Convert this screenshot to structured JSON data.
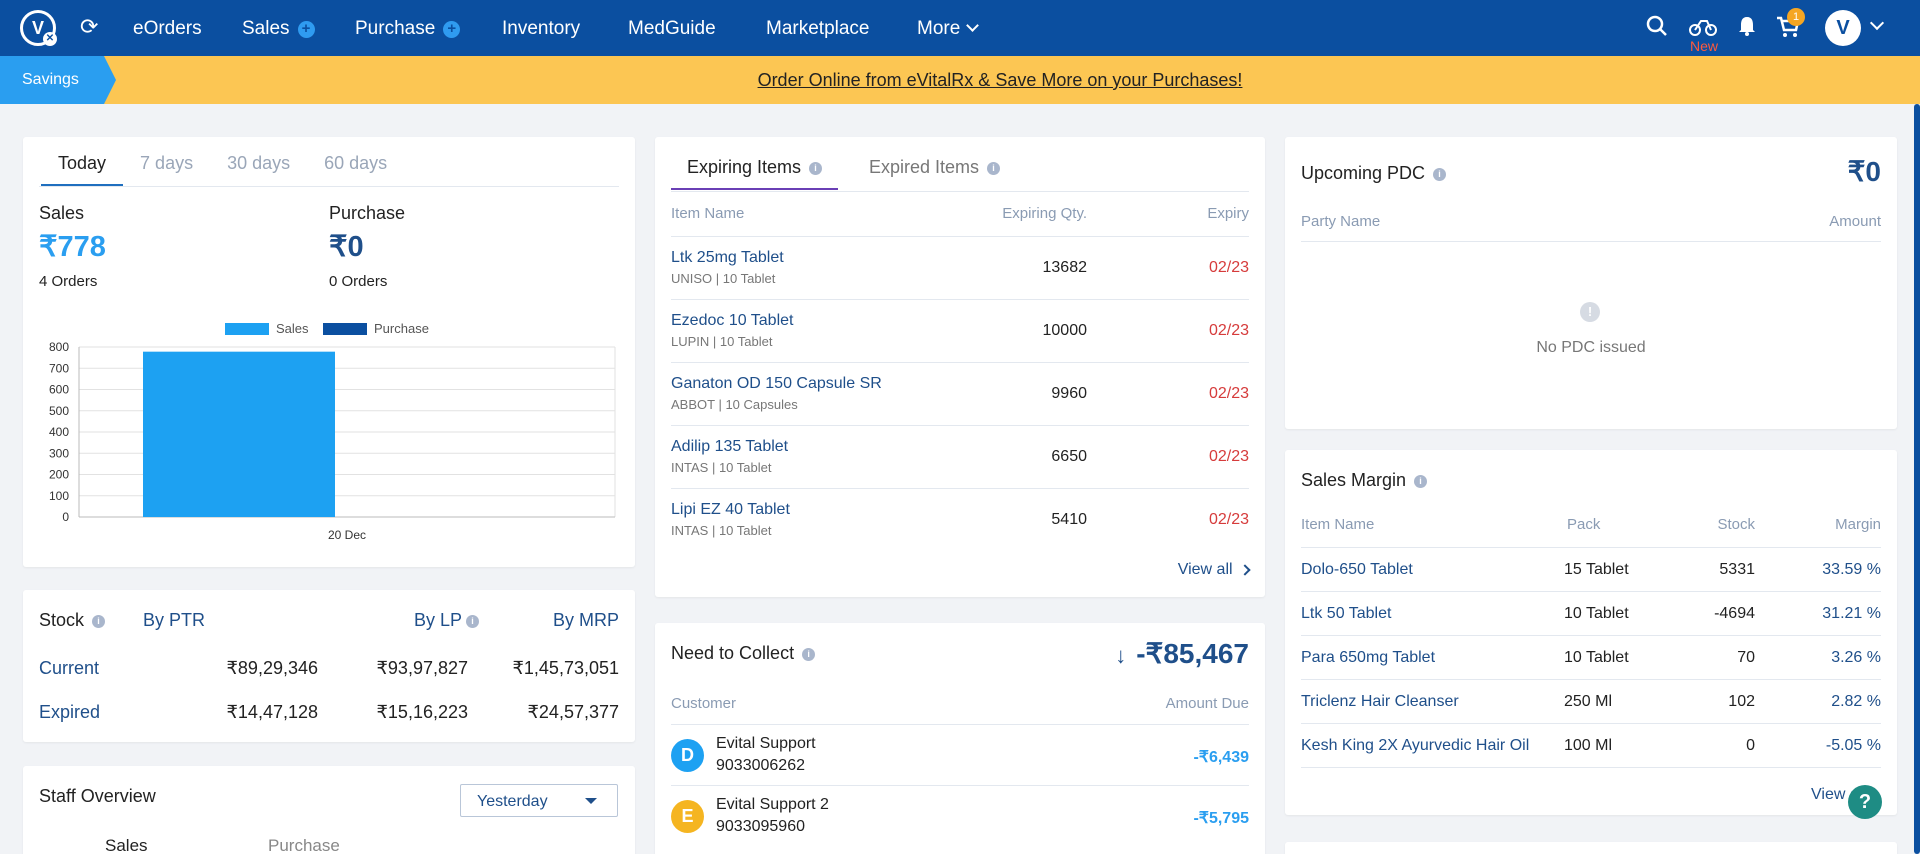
{
  "nav": {
    "items": [
      "eOrders",
      "Sales",
      "Purchase",
      "Inventory",
      "MedGuide",
      "Marketplace",
      "More"
    ],
    "new_label": "New",
    "cart_count": "1",
    "logo_letter": "V"
  },
  "banner": {
    "savings_label": "Savings",
    "link_text": "Order Online from eVitalRx & Save More on your Purchases!"
  },
  "overview": {
    "tabs": [
      "Today",
      "7 days",
      "30 days",
      "60 days"
    ],
    "active_tab": "Today",
    "sales": {
      "label": "Sales",
      "value": "₹778",
      "orders": "4 Orders"
    },
    "purchase": {
      "label": "Purchase",
      "value": "₹0",
      "orders": "0 Orders"
    }
  },
  "chart_data": {
    "type": "bar",
    "categories": [
      "20 Dec"
    ],
    "series": [
      {
        "name": "Sales",
        "values": [
          778
        ],
        "color": "#1da1f2"
      },
      {
        "name": "Purchase",
        "values": [
          0
        ],
        "color": "#0b4fa0"
      }
    ],
    "ylim": [
      0,
      800
    ],
    "yticks": [
      "0",
      "100",
      "200",
      "300",
      "400",
      "500",
      "600",
      "700",
      "800"
    ],
    "legend": "top-center",
    "grid": true
  },
  "stock": {
    "title": "Stock",
    "columns": [
      "By PTR",
      "By LP",
      "By MRP"
    ],
    "rows": [
      {
        "label": "Current",
        "values": [
          "₹89,29,346",
          "₹93,97,827",
          "₹1,45,73,051"
        ]
      },
      {
        "label": "Expired",
        "values": [
          "₹14,47,128",
          "₹15,16,223",
          "₹24,57,377"
        ]
      }
    ]
  },
  "staff": {
    "title": "Staff Overview",
    "select_value": "Yesterday",
    "sub_tabs": [
      "Sales",
      "Purchase"
    ]
  },
  "expiring": {
    "tabs": [
      "Expiring Items",
      "Expired Items"
    ],
    "headers": [
      "Item Name",
      "Expiring Qty.",
      "Expiry"
    ],
    "items": [
      {
        "name": "Ltk 25mg Tablet",
        "company": "UNISO",
        "pack": "10 Tablet",
        "qty": "13682",
        "expiry": "02/23"
      },
      {
        "name": "Ezedoc 10 Tablet",
        "company": "LUPIN",
        "pack": "10 Tablet",
        "qty": "10000",
        "expiry": "02/23"
      },
      {
        "name": "Ganaton OD 150 Capsule SR",
        "company": "ABBOT",
        "pack": "10 Capsules",
        "qty": "9960",
        "expiry": "02/23"
      },
      {
        "name": "Adilip 135 Tablet",
        "company": "INTAS",
        "pack": "10 Tablet",
        "qty": "6650",
        "expiry": "02/23"
      },
      {
        "name": "Lipi EZ 40 Tablet",
        "company": "INTAS",
        "pack": "10 Tablet",
        "qty": "5410",
        "expiry": "02/23"
      }
    ],
    "view_all": "View all"
  },
  "collect": {
    "title": "Need to Collect",
    "total": "-₹85,467",
    "headers": [
      "Customer",
      "Amount Due"
    ],
    "items": [
      {
        "initial": "D",
        "name": "Evital Support",
        "phone": "9033006262",
        "amount": "-₹6,439",
        "color": "#1da1f2"
      },
      {
        "initial": "E",
        "name": "Evital Support 2",
        "phone": "9033095960",
        "amount": "-₹5,795",
        "color": "#f5b521"
      }
    ]
  },
  "pdc": {
    "title": "Upcoming PDC",
    "amount": "₹0",
    "headers": [
      "Party Name",
      "Amount"
    ],
    "empty_text": "No PDC issued"
  },
  "margin": {
    "title": "Sales Margin",
    "headers": [
      "Item Name",
      "Pack",
      "Stock",
      "Margin"
    ],
    "rows": [
      {
        "name": "Dolo-650 Tablet",
        "pack": "15 Tablet",
        "stock": "5331",
        "margin": "33.59 %"
      },
      {
        "name": "Ltk 50 Tablet",
        "pack": "10 Tablet",
        "stock": "-4694",
        "margin": "31.21 %"
      },
      {
        "name": "Para 650mg Tablet",
        "pack": "10 Tablet",
        "stock": "70",
        "margin": "3.26 %"
      },
      {
        "name": "Triclenz Hair Cleanser",
        "pack": "250 Ml",
        "stock": "102",
        "margin": "2.82 %"
      },
      {
        "name": "Kesh King 2X Ayurvedic Hair Oil",
        "pack": "100 Ml",
        "stock": "0",
        "margin": "-5.05 %"
      }
    ],
    "view_all": "View all"
  }
}
